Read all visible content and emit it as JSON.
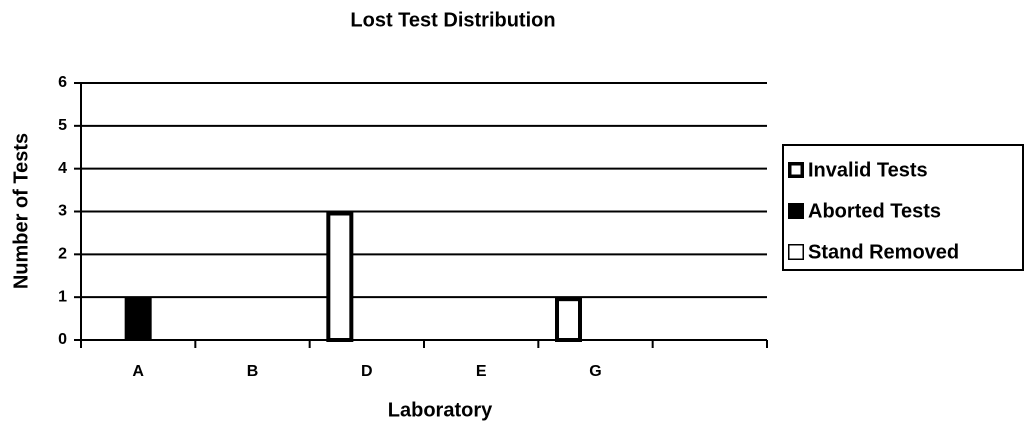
{
  "chart_data": {
    "type": "bar",
    "title": "Lost Test Distribution",
    "x_label": "Laboratory",
    "y_label": "Number of Tests",
    "categories": [
      "A",
      "B",
      "D",
      "E",
      "G",
      null
    ],
    "series": [
      {
        "name": "Invalid Tests",
        "color": "#ffffff",
        "border_width": 4,
        "values": [
          0,
          0,
          3,
          0,
          1,
          0
        ]
      },
      {
        "name": "Aborted Tests",
        "color": "#000000",
        "border_width": 1,
        "values": [
          1,
          0,
          0,
          0,
          0,
          0
        ]
      },
      {
        "name": "Stand Removed",
        "color": "#ffffff",
        "border_width": 1.5,
        "values": [
          0,
          0,
          0,
          0,
          0,
          0
        ]
      }
    ],
    "ylim": [
      0,
      6
    ],
    "yticks": [
      0,
      1,
      2,
      3,
      4,
      5,
      6
    ],
    "grid": true,
    "legend": "right"
  }
}
